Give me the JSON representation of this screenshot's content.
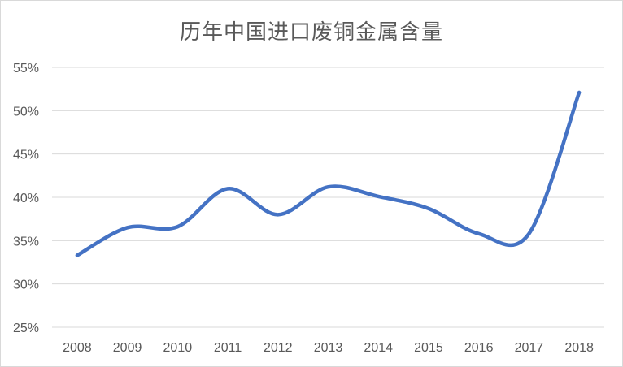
{
  "chart_data": {
    "type": "line",
    "title": "历年中国进口废铜金属含量",
    "xlabel": "",
    "ylabel": "",
    "categories": [
      "2008",
      "2009",
      "2010",
      "2011",
      "2012",
      "2013",
      "2014",
      "2015",
      "2016",
      "2017",
      "2018"
    ],
    "series": [
      {
        "values": [
          0.333,
          0.365,
          0.366,
          0.41,
          0.38,
          0.412,
          0.401,
          0.387,
          0.358,
          0.358,
          0.521
        ],
        "color": "#4472c4",
        "smooth": true
      }
    ],
    "ylim": [
      0.25,
      0.55
    ],
    "yticks": [
      "25%",
      "30%",
      "35%",
      "40%",
      "45%",
      "50%",
      "55%"
    ],
    "ytick_values": [
      0.25,
      0.3,
      0.35,
      0.4,
      0.45,
      0.5,
      0.55
    ],
    "grid": true,
    "legend": "none",
    "colors": {
      "gridline": "#d9d9d9",
      "text": "#595959",
      "line": "#4472c4"
    }
  }
}
